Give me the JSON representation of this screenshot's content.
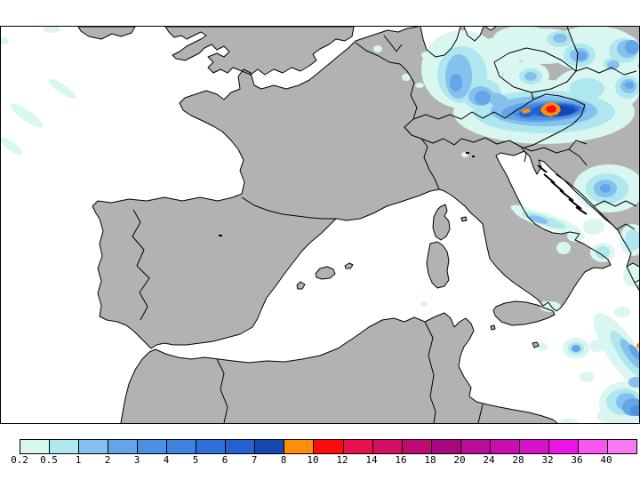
{
  "figure": {
    "type": "precipitation-map",
    "background_color": "#ffffff"
  },
  "map": {
    "land_color": "#b2b2b2",
    "sea_color": "#ffffff",
    "coastline_color": "#000000",
    "frame_color": "#000000"
  },
  "colorbar": {
    "labels": [
      "0.2",
      "0.5",
      "1",
      "2",
      "3",
      "4",
      "5",
      "6",
      "7",
      "8",
      "10",
      "12",
      "14",
      "16",
      "18",
      "20",
      "24",
      "28",
      "32",
      "36",
      "40"
    ],
    "segment_colors": [
      "#d9f7f0",
      "#aee7ee",
      "#86c0ee",
      "#64a5e8",
      "#4b91e3",
      "#3d82de",
      "#2f70d8",
      "#2562d0",
      "#1747b3",
      "#ff8e0a",
      "#fb0d0d",
      "#e8114d",
      "#d40e62",
      "#bf0a72",
      "#a9077f",
      "#bb0b9b",
      "#c90db1",
      "#d810c8",
      "#ee13e9",
      "#f955f3",
      "#fa79f3"
    ],
    "outline_color": "#000000"
  },
  "chart_data": {
    "type": "heatmap",
    "title": "",
    "legend_scale_values": [
      0.2,
      0.5,
      1,
      2,
      3,
      4,
      5,
      6,
      7,
      8,
      10,
      12,
      14,
      16,
      18,
      20,
      24,
      28,
      32,
      36,
      40
    ],
    "legend_position": "bottom",
    "precip_regions": [
      {
        "area": "central-europe-alps",
        "peak_band": "10-12",
        "note": "red core inside orange patch over Austria, dark blue band, broad light blue shield over S Germany / Czechia / Hungary"
      },
      {
        "area": "ne-atlantic",
        "peak_band": "0.2-0.5",
        "note": "faint diagonal streaks top-left"
      },
      {
        "area": "croatia-bosnia",
        "peak_band": "2-3",
        "note": "patches along right edge of Adriatic"
      },
      {
        "area": "italy-adriatic-coast",
        "peak_band": "1-2",
        "note": "narrow streak along east coast of Italy"
      },
      {
        "area": "ionian-sea",
        "peak_band": "3-4",
        "note": "diagonal band into bottom-right corner, tiny orange dot at right edge"
      }
    ]
  }
}
